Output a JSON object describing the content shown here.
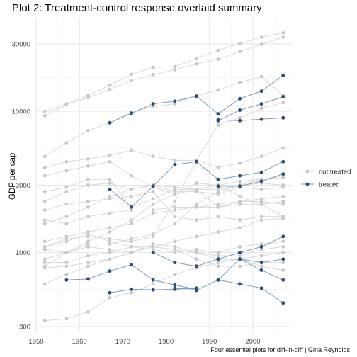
{
  "chart_data": {
    "type": "line",
    "title": "Plot 2: Treatment-control response overlaid summary",
    "caption": "Four essential plots for diff-in-diff | Gina Reynolds",
    "xlabel": "",
    "ylabel": "GDP per cap",
    "y_scale": "log",
    "xlim": [
      1950,
      2009
    ],
    "ylim": [
      270,
      46000
    ],
    "x_ticks": [
      1950,
      1960,
      1970,
      1980,
      1990,
      2000
    ],
    "y_ticks": [
      300,
      1000,
      3000,
      10000,
      30000
    ],
    "grid": true,
    "legend_position": "right",
    "legend": [
      {
        "name": "not treated",
        "color": "#c8c8c8"
      },
      {
        "name": "treated",
        "color": "#2e5077"
      }
    ],
    "colors": {
      "not_treated": "#c8c8c8",
      "treated": "#2e5077",
      "not_treated_line": "#d9d9d9",
      "treated_line": "#7d9dbd"
    },
    "series": [
      {
        "group": "not treated",
        "x": [
          1952,
          1957,
          1962,
          1967,
          1972,
          1977,
          1982,
          1987,
          1992,
          1997,
          2002,
          2007
        ],
        "y": [
          10000,
          11300,
          13000,
          15300,
          18300,
          20500,
          20700,
          23700,
          27000,
          30200,
          33500,
          36000
        ]
      },
      {
        "group": "not treated",
        "x": [
          1952,
          1957,
          1962,
          1967,
          1972,
          1977,
          1982,
          1987,
          1992,
          1997,
          2002,
          2007
        ],
        "y": [
          9300,
          11200,
          12500,
          14300,
          16500,
          18200,
          19700,
          21700,
          23400,
          26500,
          29800,
          33500
        ]
      },
      {
        "group": "not treated",
        "x": [
          1952,
          1957,
          1962,
          1967,
          1972,
          1977,
          1982,
          1987,
          1992,
          1997,
          2002,
          2007
        ],
        "y": [
          4800,
          6000,
          7300,
          8300,
          9900,
          10800,
          11300,
          12900,
          14200,
          16000,
          17600,
          13000
        ]
      },
      {
        "group": "not treated",
        "x": [
          1952,
          1957,
          1962,
          1967,
          1972,
          1977,
          1982,
          1987,
          1992,
          1997,
          2002,
          2007
        ],
        "y": [
          4000,
          4400,
          4600,
          4900,
          5300,
          4800,
          4500,
          4500,
          4000,
          4300,
          4800,
          5500
        ]
      },
      {
        "group": "not treated",
        "x": [
          1952,
          1957,
          1962,
          1967,
          1972,
          1977,
          1982,
          1987,
          1992,
          1997,
          2002,
          2007
        ],
        "y": [
          3500,
          3800,
          4100,
          4400,
          3500,
          2900,
          2600,
          2800,
          3000,
          3200,
          3300,
          3400
        ]
      },
      {
        "group": "not treated",
        "x": [
          1952,
          1957,
          1962,
          1967,
          1972,
          1977,
          1982,
          1987,
          1992,
          1997,
          2002,
          2007
        ],
        "y": [
          2700,
          2900,
          3300,
          3300,
          2100,
          2400,
          2800,
          2800,
          2100,
          2300,
          2300,
          2200
        ]
      },
      {
        "group": "not treated",
        "x": [
          1952,
          1957,
          1962,
          1967,
          1972,
          1977,
          1982,
          1987,
          1992,
          1997,
          2002,
          2007
        ],
        "y": [
          2300,
          2700,
          3000,
          3100,
          2800,
          3000,
          2700,
          2700,
          2600,
          2900,
          2800,
          2900
        ]
      },
      {
        "group": "not treated",
        "x": [
          1952,
          1957,
          1962,
          1967,
          1972,
          1977,
          1982,
          1987,
          1992,
          1997,
          2002,
          2007
        ],
        "y": [
          1600,
          1800,
          2100,
          2500,
          2800,
          3000,
          2900,
          2800,
          2800,
          3000,
          3100,
          3000
        ]
      },
      {
        "group": "not treated",
        "x": [
          1952,
          1957,
          1962,
          1967,
          1972,
          1977,
          1982,
          1987,
          1992,
          1997,
          2002,
          2007
        ],
        "y": [
          2000,
          2200,
          2300,
          2400,
          2500,
          2700,
          1800,
          1700,
          1800,
          1700,
          1800,
          1800
        ]
      },
      {
        "group": "not treated",
        "x": [
          1952,
          1957,
          1962,
          1967,
          1972,
          1977,
          1982,
          1987,
          1992,
          1997,
          2002,
          2007
        ],
        "y": [
          1700,
          1600,
          1800,
          1900,
          2000,
          2000,
          2100,
          2100,
          2100,
          2200,
          2200,
          2300
        ]
      },
      {
        "group": "not treated",
        "x": [
          1952,
          1957,
          1962,
          1967,
          1972,
          1977,
          1982,
          1987,
          1992,
          1997,
          2002,
          2007
        ],
        "y": [
          1200,
          1300,
          1400,
          1500,
          1600,
          1900,
          2000,
          2100,
          2200,
          2300,
          2400,
          2500
        ]
      },
      {
        "group": "not treated",
        "x": [
          1952,
          1957,
          1962,
          1967,
          1972,
          1977,
          1982,
          1987,
          1992,
          1997,
          2002,
          2007
        ],
        "y": [
          1100,
          1250,
          1300,
          1250,
          1200,
          1300,
          2300,
          4500,
          8000,
          9000,
          10500,
          11500
        ]
      },
      {
        "group": "not treated",
        "x": [
          1952,
          1957,
          1962,
          1967,
          1972,
          1977,
          1982,
          1987,
          1992,
          1997,
          2002,
          2007
        ],
        "y": [
          1100,
          1200,
          1350,
          1200,
          1100,
          1050,
          1000,
          1050,
          1000,
          1100,
          1150,
          1200
        ]
      },
      {
        "group": "not treated",
        "x": [
          1952,
          1957,
          1962,
          1967,
          1972,
          1977,
          1982,
          1987,
          1992,
          1997,
          2002,
          2007
        ],
        "y": [
          1050,
          1000,
          1100,
          1050,
          1000,
          1100,
          1200,
          1300,
          1400,
          1500,
          1700,
          1750
        ]
      },
      {
        "group": "not treated",
        "x": [
          1952,
          1957,
          1962,
          1967,
          1972,
          1977,
          1982,
          1987,
          1992,
          1997,
          2002,
          2007
        ],
        "y": [
          900,
          1000,
          1150,
          1150,
          1250,
          1350,
          1600,
          2200,
          2700,
          3000,
          3300,
          3500
        ]
      },
      {
        "group": "not treated",
        "x": [
          1952,
          1957,
          1962,
          1967,
          1972,
          1977,
          1982,
          1987,
          1992,
          1997,
          2002,
          2007
        ],
        "y": [
          800,
          1000,
          1200,
          1400,
          1700,
          2200,
          2600,
          3100,
          3000,
          2500,
          2200,
          1800
        ]
      },
      {
        "group": "not treated",
        "x": [
          1952,
          1957,
          1962,
          1967,
          1972,
          1977,
          1982,
          1987,
          1992,
          1997,
          2002,
          2007
        ],
        "y": [
          850,
          850,
          950,
          1000,
          1100,
          1100,
          1050,
          1000,
          950,
          950,
          1050,
          1100
        ]
      },
      {
        "group": "not treated",
        "x": [
          1952,
          1957,
          1962,
          1967,
          1972,
          1977,
          1982,
          1987,
          1992,
          1997,
          2002,
          2007
        ],
        "y": [
          780,
          800,
          850,
          900,
          1000,
          1100,
          1050,
          900,
          800,
          800,
          850,
          850
        ]
      },
      {
        "group": "not treated",
        "x": [
          1952,
          1957,
          1962,
          1967,
          1972,
          1977,
          1982,
          1987,
          1992,
          1997,
          2002,
          2007
        ],
        "y": [
          600,
          700,
          800,
          900,
          1000,
          1150,
          1100,
          1000,
          900,
          900,
          950,
          1000
        ]
      },
      {
        "group": "not treated",
        "x": [
          1952,
          1957,
          1962,
          1967,
          1972,
          1977,
          1982,
          1987,
          1992,
          1997,
          2002,
          2007
        ],
        "y": [
          330,
          340,
          380,
          480,
          520,
          600,
          700,
          780,
          850,
          900,
          800,
          750
        ]
      },
      {
        "group": "treated",
        "x": [
          1967,
          1972,
          1977,
          1982,
          1987,
          1992,
          1997,
          2002,
          2007
        ],
        "y": [
          8300,
          9700,
          11300,
          11800,
          12800,
          9600,
          12300,
          13900,
          18000
        ]
      },
      {
        "group": "treated",
        "x": [
          1992,
          1997,
          2002,
          2007
        ],
        "y": [
          8600,
          10200,
          11300,
          12700
        ]
      },
      {
        "group": "treated",
        "x": [
          1992,
          1997,
          2002,
          2007
        ],
        "y": [
          8700,
          8600,
          8800,
          9000
        ]
      },
      {
        "group": "treated",
        "x": [
          1977,
          1982,
          1987,
          1992,
          1997,
          2002,
          2007
        ],
        "y": [
          2950,
          4200,
          4400,
          3300,
          3500,
          3700,
          4400
        ]
      },
      {
        "group": "treated",
        "x": [
          1967,
          1972,
          1977
        ],
        "y": [
          2800,
          2100,
          2950
        ]
      },
      {
        "group": "treated",
        "x": [
          1992,
          1997,
          2002,
          2007
        ],
        "y": [
          2950,
          2950,
          3200,
          3600
        ]
      },
      {
        "group": "treated",
        "x": [
          1977,
          1982,
          1987,
          1992,
          1997,
          2002,
          2007
        ],
        "y": [
          1000,
          850,
          800,
          900,
          1000,
          1100,
          1300
        ]
      },
      {
        "group": "treated",
        "x": [
          1992,
          1997,
          2002,
          2007
        ],
        "y": [
          900,
          900,
          850,
          900
        ]
      },
      {
        "group": "treated",
        "x": [
          1957,
          1962,
          1967,
          1972,
          1977,
          1982,
          1987
        ],
        "y": [
          640,
          650,
          740,
          820,
          640,
          590,
          550
        ]
      },
      {
        "group": "treated",
        "x": [
          1987,
          1992,
          1997,
          2002,
          2007
        ],
        "y": [
          540,
          640,
          900,
          750,
          640
        ]
      },
      {
        "group": "treated",
        "x": [
          1992,
          1997,
          2002,
          2007
        ],
        "y": [
          640,
          600,
          560,
          440
        ]
      },
      {
        "group": "treated",
        "x": [
          1967,
          1972,
          1977,
          1982,
          1987
        ],
        "y": [
          520,
          550,
          545,
          550,
          560
        ]
      },
      {
        "group": "treated",
        "x": [
          1982,
          1987
        ],
        "y": [
          560,
          550
        ]
      }
    ]
  }
}
